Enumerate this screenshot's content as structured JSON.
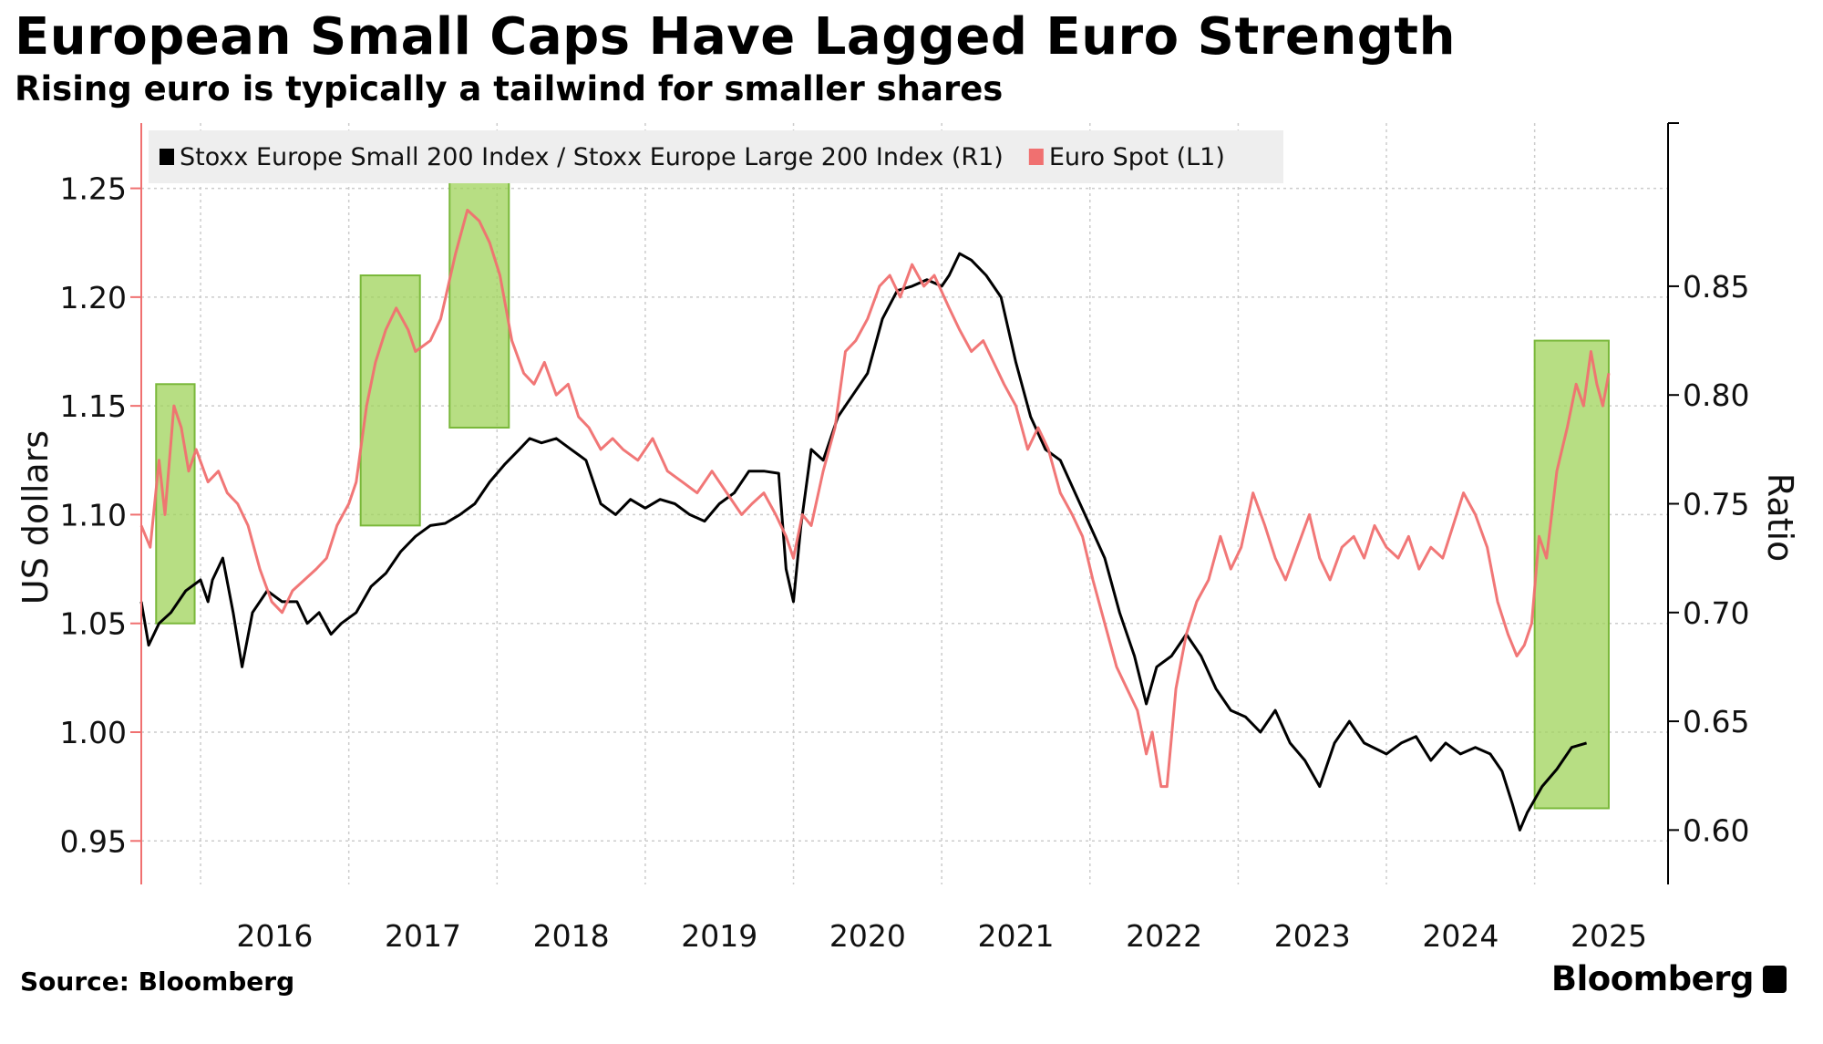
{
  "title": "European Small Caps Have Lagged Euro Strength",
  "subtitle": "Rising euro is typically a tailwind for smaller shares",
  "source": "Source: Bloomberg",
  "brand": "Bloomberg",
  "colors": {
    "ratio_line": "#000000",
    "euro_line": "#f07070",
    "highlight_fill": "#9fd35a",
    "highlight_stroke": "#7ab83a",
    "grid": "#cccccc",
    "legend_bg": "#eeeeee"
  },
  "chart_data": {
    "type": "line",
    "title": "European Small Caps Have Lagged Euro Strength",
    "subtitle": "Rising euro is typically a tailwind for smaller shares",
    "x_tick_labels": [
      "2016",
      "2017",
      "2018",
      "2019",
      "2020",
      "2021",
      "2022",
      "2023",
      "2024",
      "2025"
    ],
    "x_range": [
      2015.6,
      2025.9
    ],
    "left_axis": {
      "label": "US dollars",
      "range": [
        0.93,
        1.28
      ],
      "ticks": [
        "1.25",
        "1.20",
        "1.15",
        "1.10",
        "1.05",
        "1.00",
        "0.95"
      ]
    },
    "right_axis": {
      "label": "Ratio",
      "range": [
        0.575,
        0.925
      ],
      "ticks": [
        "0.85",
        "0.80",
        "0.75",
        "0.70",
        "0.65",
        "0.60"
      ]
    },
    "grid": true,
    "legend_position": "top-left",
    "series": [
      {
        "name": "Stoxx Europe Small 200 Index / Stoxx Europe Large 200 Index (R1)",
        "axis": "right",
        "points": [
          [
            2015.6,
            0.705
          ],
          [
            2015.65,
            0.685
          ],
          [
            2015.72,
            0.695
          ],
          [
            2015.8,
            0.7
          ],
          [
            2015.9,
            0.71
          ],
          [
            2016.0,
            0.715
          ],
          [
            2016.05,
            0.705
          ],
          [
            2016.08,
            0.715
          ],
          [
            2016.15,
            0.725
          ],
          [
            2016.22,
            0.7
          ],
          [
            2016.28,
            0.675
          ],
          [
            2016.35,
            0.7
          ],
          [
            2016.45,
            0.71
          ],
          [
            2016.55,
            0.705
          ],
          [
            2016.65,
            0.705
          ],
          [
            2016.72,
            0.695
          ],
          [
            2016.8,
            0.7
          ],
          [
            2016.88,
            0.69
          ],
          [
            2016.95,
            0.695
          ],
          [
            2017.05,
            0.7
          ],
          [
            2017.15,
            0.712
          ],
          [
            2017.25,
            0.718
          ],
          [
            2017.35,
            0.728
          ],
          [
            2017.45,
            0.735
          ],
          [
            2017.55,
            0.74
          ],
          [
            2017.65,
            0.741
          ],
          [
            2017.75,
            0.745
          ],
          [
            2017.85,
            0.75
          ],
          [
            2017.95,
            0.76
          ],
          [
            2018.05,
            0.768
          ],
          [
            2018.15,
            0.775
          ],
          [
            2018.22,
            0.78
          ],
          [
            2018.3,
            0.778
          ],
          [
            2018.4,
            0.78
          ],
          [
            2018.5,
            0.775
          ],
          [
            2018.6,
            0.77
          ],
          [
            2018.7,
            0.75
          ],
          [
            2018.8,
            0.745
          ],
          [
            2018.9,
            0.752
          ],
          [
            2019.0,
            0.748
          ],
          [
            2019.1,
            0.752
          ],
          [
            2019.2,
            0.75
          ],
          [
            2019.3,
            0.745
          ],
          [
            2019.4,
            0.742
          ],
          [
            2019.5,
            0.75
          ],
          [
            2019.6,
            0.755
          ],
          [
            2019.7,
            0.765
          ],
          [
            2019.8,
            0.765
          ],
          [
            2019.9,
            0.764
          ],
          [
            2019.95,
            0.72
          ],
          [
            2020.0,
            0.705
          ],
          [
            2020.05,
            0.74
          ],
          [
            2020.12,
            0.775
          ],
          [
            2020.2,
            0.77
          ],
          [
            2020.3,
            0.79
          ],
          [
            2020.4,
            0.8
          ],
          [
            2020.5,
            0.81
          ],
          [
            2020.6,
            0.835
          ],
          [
            2020.7,
            0.848
          ],
          [
            2020.8,
            0.85
          ],
          [
            2020.9,
            0.853
          ],
          [
            2021.0,
            0.85
          ],
          [
            2021.05,
            0.855
          ],
          [
            2021.12,
            0.865
          ],
          [
            2021.2,
            0.862
          ],
          [
            2021.3,
            0.855
          ],
          [
            2021.4,
            0.845
          ],
          [
            2021.5,
            0.815
          ],
          [
            2021.6,
            0.79
          ],
          [
            2021.7,
            0.775
          ],
          [
            2021.8,
            0.77
          ],
          [
            2021.9,
            0.755
          ],
          [
            2022.0,
            0.74
          ],
          [
            2022.1,
            0.725
          ],
          [
            2022.2,
            0.7
          ],
          [
            2022.3,
            0.68
          ],
          [
            2022.38,
            0.658
          ],
          [
            2022.45,
            0.675
          ],
          [
            2022.55,
            0.68
          ],
          [
            2022.65,
            0.69
          ],
          [
            2022.75,
            0.68
          ],
          [
            2022.85,
            0.665
          ],
          [
            2022.95,
            0.655
          ],
          [
            2023.05,
            0.652
          ],
          [
            2023.15,
            0.645
          ],
          [
            2023.25,
            0.655
          ],
          [
            2023.35,
            0.64
          ],
          [
            2023.45,
            0.632
          ],
          [
            2023.55,
            0.62
          ],
          [
            2023.65,
            0.64
          ],
          [
            2023.75,
            0.65
          ],
          [
            2023.85,
            0.64
          ],
          [
            2024.0,
            0.635
          ],
          [
            2024.1,
            0.64
          ],
          [
            2024.2,
            0.643
          ],
          [
            2024.3,
            0.632
          ],
          [
            2024.4,
            0.64
          ],
          [
            2024.5,
            0.635
          ],
          [
            2024.6,
            0.638
          ],
          [
            2024.7,
            0.635
          ],
          [
            2024.78,
            0.627
          ],
          [
            2024.85,
            0.612
          ],
          [
            2024.9,
            0.6
          ],
          [
            2024.95,
            0.608
          ],
          [
            2025.05,
            0.62
          ],
          [
            2025.15,
            0.628
          ],
          [
            2025.25,
            0.638
          ],
          [
            2025.35,
            0.64
          ]
        ]
      },
      {
        "name": "Euro Spot  (L1)",
        "axis": "left",
        "points": [
          [
            2015.6,
            1.095
          ],
          [
            2015.66,
            1.085
          ],
          [
            2015.72,
            1.125
          ],
          [
            2015.76,
            1.1
          ],
          [
            2015.82,
            1.15
          ],
          [
            2015.87,
            1.14
          ],
          [
            2015.92,
            1.12
          ],
          [
            2015.97,
            1.13
          ],
          [
            2016.05,
            1.115
          ],
          [
            2016.12,
            1.12
          ],
          [
            2016.18,
            1.11
          ],
          [
            2016.25,
            1.105
          ],
          [
            2016.32,
            1.095
          ],
          [
            2016.4,
            1.075
          ],
          [
            2016.48,
            1.06
          ],
          [
            2016.55,
            1.055
          ],
          [
            2016.62,
            1.065
          ],
          [
            2016.7,
            1.07
          ],
          [
            2016.78,
            1.075
          ],
          [
            2016.85,
            1.08
          ],
          [
            2016.92,
            1.095
          ],
          [
            2017.0,
            1.105
          ],
          [
            2017.05,
            1.115
          ],
          [
            2017.12,
            1.15
          ],
          [
            2017.18,
            1.17
          ],
          [
            2017.25,
            1.185
          ],
          [
            2017.32,
            1.195
          ],
          [
            2017.4,
            1.185
          ],
          [
            2017.45,
            1.175
          ],
          [
            2017.55,
            1.18
          ],
          [
            2017.62,
            1.19
          ],
          [
            2017.72,
            1.22
          ],
          [
            2017.8,
            1.24
          ],
          [
            2017.88,
            1.235
          ],
          [
            2017.95,
            1.225
          ],
          [
            2018.02,
            1.21
          ],
          [
            2018.1,
            1.18
          ],
          [
            2018.18,
            1.165
          ],
          [
            2018.25,
            1.16
          ],
          [
            2018.32,
            1.17
          ],
          [
            2018.4,
            1.155
          ],
          [
            2018.48,
            1.16
          ],
          [
            2018.55,
            1.145
          ],
          [
            2018.62,
            1.14
          ],
          [
            2018.7,
            1.13
          ],
          [
            2018.78,
            1.135
          ],
          [
            2018.85,
            1.13
          ],
          [
            2018.95,
            1.125
          ],
          [
            2019.05,
            1.135
          ],
          [
            2019.15,
            1.12
          ],
          [
            2019.25,
            1.115
          ],
          [
            2019.35,
            1.11
          ],
          [
            2019.45,
            1.12
          ],
          [
            2019.55,
            1.11
          ],
          [
            2019.65,
            1.1
          ],
          [
            2019.72,
            1.105
          ],
          [
            2019.8,
            1.11
          ],
          [
            2019.88,
            1.1
          ],
          [
            2019.95,
            1.09
          ],
          [
            2020.0,
            1.08
          ],
          [
            2020.06,
            1.1
          ],
          [
            2020.12,
            1.095
          ],
          [
            2020.2,
            1.12
          ],
          [
            2020.28,
            1.14
          ],
          [
            2020.35,
            1.175
          ],
          [
            2020.42,
            1.18
          ],
          [
            2020.5,
            1.19
          ],
          [
            2020.58,
            1.205
          ],
          [
            2020.65,
            1.21
          ],
          [
            2020.72,
            1.2
          ],
          [
            2020.8,
            1.215
          ],
          [
            2020.88,
            1.205
          ],
          [
            2020.95,
            1.21
          ],
          [
            2021.05,
            1.195
          ],
          [
            2021.12,
            1.185
          ],
          [
            2021.2,
            1.175
          ],
          [
            2021.28,
            1.18
          ],
          [
            2021.35,
            1.17
          ],
          [
            2021.42,
            1.16
          ],
          [
            2021.5,
            1.15
          ],
          [
            2021.58,
            1.13
          ],
          [
            2021.65,
            1.14
          ],
          [
            2021.72,
            1.13
          ],
          [
            2021.8,
            1.11
          ],
          [
            2021.88,
            1.1
          ],
          [
            2021.95,
            1.09
          ],
          [
            2022.02,
            1.07
          ],
          [
            2022.1,
            1.05
          ],
          [
            2022.18,
            1.03
          ],
          [
            2022.25,
            1.02
          ],
          [
            2022.32,
            1.01
          ],
          [
            2022.38,
            0.99
          ],
          [
            2022.42,
            1.0
          ],
          [
            2022.48,
            0.975
          ],
          [
            2022.52,
            0.975
          ],
          [
            2022.58,
            1.02
          ],
          [
            2022.65,
            1.045
          ],
          [
            2022.72,
            1.06
          ],
          [
            2022.8,
            1.07
          ],
          [
            2022.88,
            1.09
          ],
          [
            2022.95,
            1.075
          ],
          [
            2023.02,
            1.085
          ],
          [
            2023.1,
            1.11
          ],
          [
            2023.18,
            1.095
          ],
          [
            2023.25,
            1.08
          ],
          [
            2023.32,
            1.07
          ],
          [
            2023.4,
            1.085
          ],
          [
            2023.48,
            1.1
          ],
          [
            2023.55,
            1.08
          ],
          [
            2023.62,
            1.07
          ],
          [
            2023.7,
            1.085
          ],
          [
            2023.78,
            1.09
          ],
          [
            2023.85,
            1.08
          ],
          [
            2023.92,
            1.095
          ],
          [
            2024.0,
            1.085
          ],
          [
            2024.08,
            1.08
          ],
          [
            2024.15,
            1.09
          ],
          [
            2024.22,
            1.075
          ],
          [
            2024.3,
            1.085
          ],
          [
            2024.38,
            1.08
          ],
          [
            2024.45,
            1.095
          ],
          [
            2024.52,
            1.11
          ],
          [
            2024.6,
            1.1
          ],
          [
            2024.68,
            1.085
          ],
          [
            2024.75,
            1.06
          ],
          [
            2024.82,
            1.045
          ],
          [
            2024.88,
            1.035
          ],
          [
            2024.93,
            1.04
          ],
          [
            2024.98,
            1.05
          ],
          [
            2025.03,
            1.09
          ],
          [
            2025.08,
            1.08
          ],
          [
            2025.15,
            1.12
          ],
          [
            2025.22,
            1.14
          ],
          [
            2025.28,
            1.16
          ],
          [
            2025.33,
            1.15
          ],
          [
            2025.38,
            1.175
          ],
          [
            2025.42,
            1.16
          ],
          [
            2025.46,
            1.15
          ],
          [
            2025.5,
            1.165
          ]
        ]
      }
    ],
    "highlights": [
      {
        "x_range": [
          2015.7,
          2015.96
        ],
        "y_range_left": [
          1.05,
          1.16
        ]
      },
      {
        "x_range": [
          2017.08,
          2017.48
        ],
        "y_range_left": [
          1.095,
          1.21
        ]
      },
      {
        "x_range": [
          2017.68,
          2018.08
        ],
        "y_range_left": [
          1.14,
          1.255
        ]
      },
      {
        "x_range": [
          2025.0,
          2025.5
        ],
        "y_range_left": [
          0.965,
          1.18
        ]
      }
    ]
  }
}
